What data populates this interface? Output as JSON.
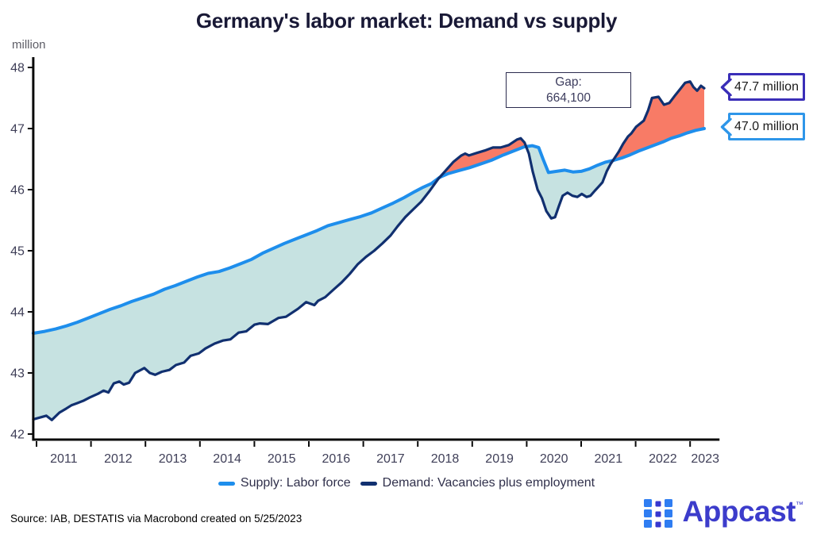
{
  "title": "Germany's labor market: Demand vs supply",
  "chart_data": {
    "type": "line",
    "title": "Germany's labor market: Demand vs supply",
    "ylabel": "million",
    "xlabel": "",
    "grid": false,
    "legend_position": "bottom",
    "ylim": [
      42,
      48
    ],
    "xlim": [
      2010.94,
      2023.54
    ],
    "y_ticks": [
      42,
      43,
      44,
      45,
      46,
      47,
      48
    ],
    "x_ticks": [
      2011,
      2012,
      2013,
      2014,
      2015,
      2016,
      2017,
      2018,
      2019,
      2020,
      2021,
      2022,
      2023
    ],
    "axis_color": "#0a0a0a",
    "tick_label_color": "#3f3f58",
    "fill_between": {
      "supply_above_color": "#c6e2e1",
      "demand_above_color": "#f87b66"
    },
    "series": [
      {
        "name": "Supply: Labor force",
        "color": "#1e8eec",
        "points": [
          [
            2010.94,
            43.65
          ],
          [
            2011.15,
            43.68
          ],
          [
            2011.35,
            43.72
          ],
          [
            2011.55,
            43.77
          ],
          [
            2011.75,
            43.83
          ],
          [
            2011.95,
            43.9
          ],
          [
            2012.15,
            43.97
          ],
          [
            2012.35,
            44.04
          ],
          [
            2012.55,
            44.1
          ],
          [
            2012.75,
            44.17
          ],
          [
            2012.95,
            44.23
          ],
          [
            2013.15,
            44.29
          ],
          [
            2013.35,
            44.37
          ],
          [
            2013.55,
            44.43
          ],
          [
            2013.75,
            44.5
          ],
          [
            2013.95,
            44.57
          ],
          [
            2014.15,
            44.63
          ],
          [
            2014.35,
            44.66
          ],
          [
            2014.55,
            44.72
          ],
          [
            2014.75,
            44.79
          ],
          [
            2014.95,
            44.86
          ],
          [
            2015.15,
            44.96
          ],
          [
            2015.35,
            45.04
          ],
          [
            2015.55,
            45.12
          ],
          [
            2015.75,
            45.19
          ],
          [
            2015.95,
            45.26
          ],
          [
            2016.15,
            45.33
          ],
          [
            2016.35,
            45.41
          ],
          [
            2016.55,
            45.46
          ],
          [
            2016.75,
            45.51
          ],
          [
            2016.95,
            45.56
          ],
          [
            2017.15,
            45.62
          ],
          [
            2017.35,
            45.7
          ],
          [
            2017.55,
            45.78
          ],
          [
            2017.75,
            45.87
          ],
          [
            2017.95,
            45.97
          ],
          [
            2018.1,
            46.04
          ],
          [
            2018.25,
            46.1
          ],
          [
            2018.4,
            46.2
          ],
          [
            2018.55,
            46.26
          ],
          [
            2018.75,
            46.31
          ],
          [
            2018.95,
            46.36
          ],
          [
            2019.15,
            46.42
          ],
          [
            2019.35,
            46.48
          ],
          [
            2019.55,
            46.56
          ],
          [
            2019.75,
            46.63
          ],
          [
            2019.95,
            46.7
          ],
          [
            2020.1,
            46.72
          ],
          [
            2020.22,
            46.69
          ],
          [
            2020.3,
            46.5
          ],
          [
            2020.4,
            46.28
          ],
          [
            2020.55,
            46.3
          ],
          [
            2020.7,
            46.32
          ],
          [
            2020.85,
            46.29
          ],
          [
            2021.0,
            46.3
          ],
          [
            2021.15,
            46.34
          ],
          [
            2021.3,
            46.4
          ],
          [
            2021.45,
            46.45
          ],
          [
            2021.6,
            46.48
          ],
          [
            2021.75,
            46.52
          ],
          [
            2021.9,
            46.57
          ],
          [
            2022.05,
            46.63
          ],
          [
            2022.2,
            46.68
          ],
          [
            2022.35,
            46.73
          ],
          [
            2022.5,
            46.78
          ],
          [
            2022.65,
            46.84
          ],
          [
            2022.8,
            46.88
          ],
          [
            2022.95,
            46.93
          ],
          [
            2023.1,
            46.97
          ],
          [
            2023.26,
            47.0
          ]
        ]
      },
      {
        "name": "Demand: Vacancies plus employment",
        "color": "#113070",
        "points": [
          [
            2010.94,
            42.24
          ],
          [
            2011.1,
            42.28
          ],
          [
            2011.18,
            42.3
          ],
          [
            2011.28,
            42.23
          ],
          [
            2011.42,
            42.35
          ],
          [
            2011.55,
            42.42
          ],
          [
            2011.64,
            42.47
          ],
          [
            2011.76,
            42.51
          ],
          [
            2011.87,
            42.55
          ],
          [
            2011.98,
            42.6
          ],
          [
            2012.13,
            42.66
          ],
          [
            2012.23,
            42.71
          ],
          [
            2012.32,
            42.68
          ],
          [
            2012.42,
            42.83
          ],
          [
            2012.52,
            42.86
          ],
          [
            2012.6,
            42.81
          ],
          [
            2012.7,
            42.84
          ],
          [
            2012.81,
            43.0
          ],
          [
            2012.98,
            43.08
          ],
          [
            2013.08,
            43.0
          ],
          [
            2013.18,
            42.97
          ],
          [
            2013.3,
            43.02
          ],
          [
            2013.44,
            43.05
          ],
          [
            2013.56,
            43.13
          ],
          [
            2013.71,
            43.17
          ],
          [
            2013.83,
            43.28
          ],
          [
            2013.98,
            43.32
          ],
          [
            2014.1,
            43.4
          ],
          [
            2014.27,
            43.48
          ],
          [
            2014.42,
            43.53
          ],
          [
            2014.56,
            43.55
          ],
          [
            2014.71,
            43.66
          ],
          [
            2014.85,
            43.68
          ],
          [
            2015.0,
            43.79
          ],
          [
            2015.1,
            43.81
          ],
          [
            2015.25,
            43.8
          ],
          [
            2015.44,
            43.9
          ],
          [
            2015.58,
            43.92
          ],
          [
            2015.8,
            44.05
          ],
          [
            2015.95,
            44.16
          ],
          [
            2016.1,
            44.11
          ],
          [
            2016.17,
            44.18
          ],
          [
            2016.3,
            44.24
          ],
          [
            2016.46,
            44.37
          ],
          [
            2016.6,
            44.48
          ],
          [
            2016.75,
            44.62
          ],
          [
            2016.9,
            44.78
          ],
          [
            2017.05,
            44.9
          ],
          [
            2017.2,
            45.0
          ],
          [
            2017.35,
            45.12
          ],
          [
            2017.5,
            45.25
          ],
          [
            2017.63,
            45.4
          ],
          [
            2017.77,
            45.55
          ],
          [
            2017.92,
            45.68
          ],
          [
            2018.06,
            45.8
          ],
          [
            2018.21,
            45.97
          ],
          [
            2018.38,
            46.18
          ],
          [
            2018.5,
            46.3
          ],
          [
            2018.65,
            46.45
          ],
          [
            2018.8,
            46.56
          ],
          [
            2018.87,
            46.59
          ],
          [
            2018.94,
            46.56
          ],
          [
            2019.08,
            46.6
          ],
          [
            2019.23,
            46.64
          ],
          [
            2019.38,
            46.69
          ],
          [
            2019.52,
            46.69
          ],
          [
            2019.67,
            46.73
          ],
          [
            2019.82,
            46.82
          ],
          [
            2019.89,
            46.84
          ],
          [
            2019.96,
            46.77
          ],
          [
            2020.04,
            46.59
          ],
          [
            2020.11,
            46.3
          ],
          [
            2020.2,
            46.0
          ],
          [
            2020.28,
            45.86
          ],
          [
            2020.36,
            45.65
          ],
          [
            2020.45,
            45.53
          ],
          [
            2020.52,
            45.55
          ],
          [
            2020.59,
            45.73
          ],
          [
            2020.66,
            45.9
          ],
          [
            2020.75,
            45.95
          ],
          [
            2020.84,
            45.9
          ],
          [
            2020.93,
            45.88
          ],
          [
            2021.01,
            45.93
          ],
          [
            2021.1,
            45.88
          ],
          [
            2021.17,
            45.9
          ],
          [
            2021.25,
            45.98
          ],
          [
            2021.32,
            46.05
          ],
          [
            2021.39,
            46.12
          ],
          [
            2021.47,
            46.3
          ],
          [
            2021.54,
            46.42
          ],
          [
            2021.6,
            46.5
          ],
          [
            2021.69,
            46.62
          ],
          [
            2021.77,
            46.75
          ],
          [
            2021.86,
            46.87
          ],
          [
            2021.92,
            46.92
          ],
          [
            2022.01,
            47.03
          ],
          [
            2022.15,
            47.13
          ],
          [
            2022.23,
            47.3
          ],
          [
            2022.3,
            47.5
          ],
          [
            2022.42,
            47.52
          ],
          [
            2022.52,
            47.39
          ],
          [
            2022.62,
            47.42
          ],
          [
            2022.73,
            47.55
          ],
          [
            2022.82,
            47.65
          ],
          [
            2022.91,
            47.75
          ],
          [
            2023.0,
            47.77
          ],
          [
            2023.06,
            47.68
          ],
          [
            2023.13,
            47.62
          ],
          [
            2023.2,
            47.7
          ],
          [
            2023.26,
            47.66
          ]
        ]
      }
    ],
    "annotations": {
      "gap_box": {
        "line1": "Gap:",
        "line2": "664,100"
      },
      "callouts": [
        {
          "label": "47.7 million",
          "border_color": "#3a2eb8"
        },
        {
          "label": "47.0 million",
          "border_color": "#2e96e9"
        }
      ]
    }
  },
  "footer": {
    "source": "Source: IAB, DESTATIS via Macrobond created on 5/25/2023"
  },
  "branding": {
    "wordmark": "Appcast",
    "trademark": "™",
    "wordmark_color": "#3c3ccb",
    "icon_blue": "#2f7df2",
    "icon_indigo": "#3838cf"
  }
}
